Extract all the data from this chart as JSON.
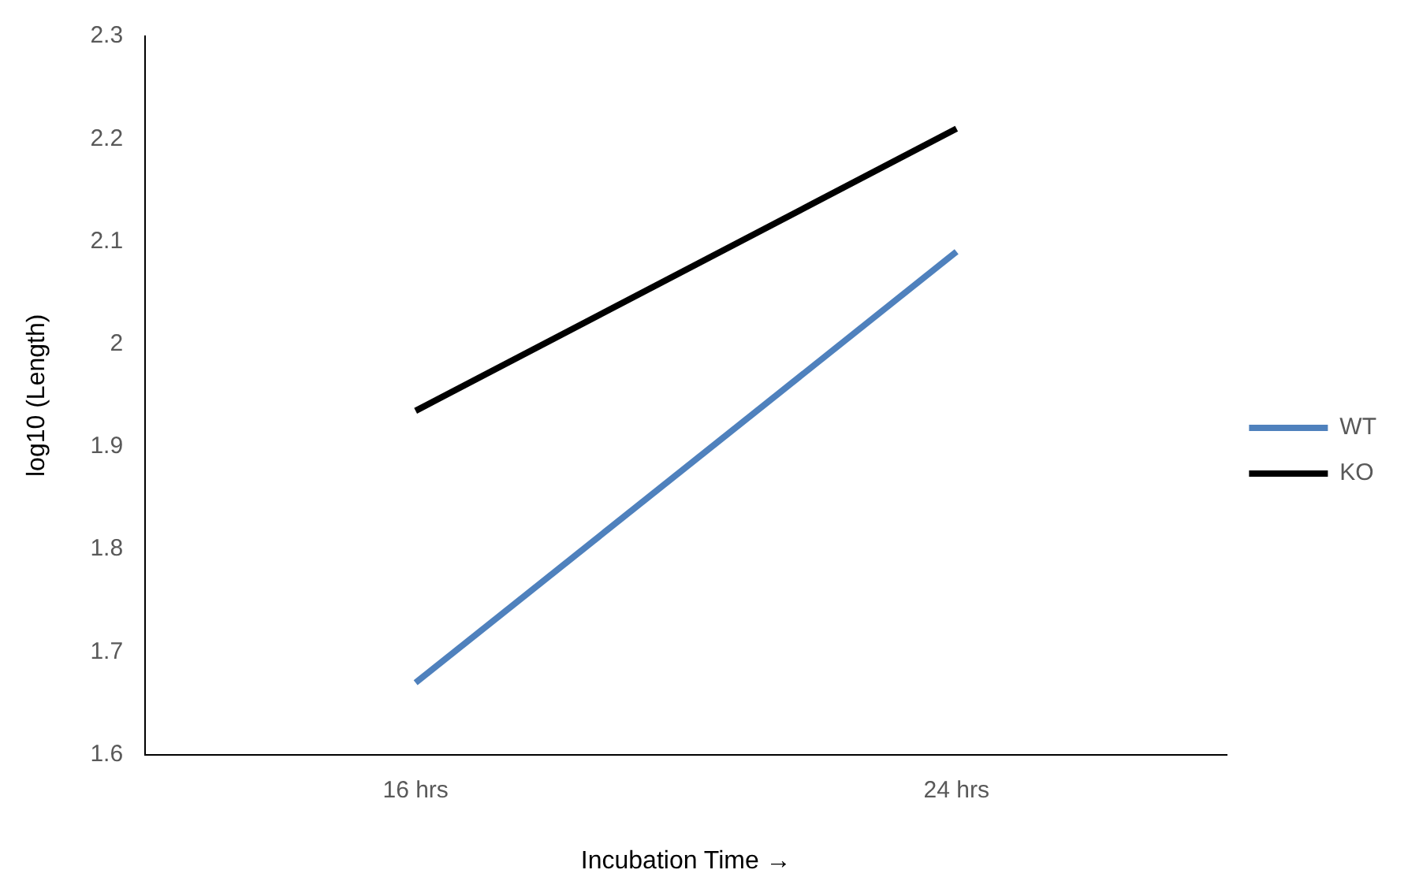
{
  "chart_data": {
    "type": "line",
    "xlabel": "Incubation Time →",
    "ylabel": "log10 (Length)",
    "categories": [
      "16 hrs",
      "24 hrs"
    ],
    "series": [
      {
        "name": "WT",
        "color": "#4f81bd",
        "values": [
          1.67,
          2.09
        ]
      },
      {
        "name": "KO",
        "color": "#000000",
        "values": [
          1.935,
          2.21
        ]
      }
    ],
    "ylim": [
      1.6,
      2.3
    ],
    "yticks": [
      1.6,
      1.7,
      1.8,
      1.9,
      2,
      2.1,
      2.2,
      2.3
    ],
    "grid": false,
    "legend": "right",
    "marker": "none",
    "line_style": "solid"
  }
}
